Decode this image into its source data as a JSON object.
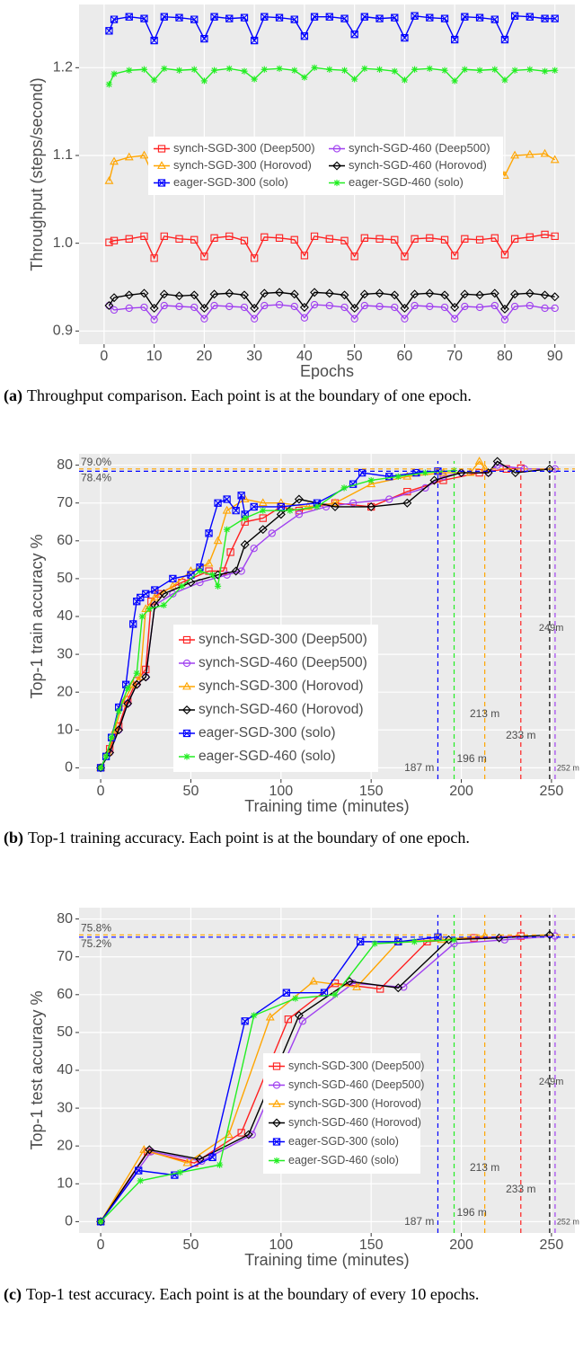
{
  "chart_data": [
    {
      "type": "line",
      "xlabel": "Epochs",
      "ylabel": "Throughput (steps/second)",
      "caption_label": "(a)",
      "caption": "Throughput comparison. Each point is at the boundary of one epoch.",
      "xlim": [
        -5,
        94
      ],
      "ylim": [
        0.885,
        1.272
      ],
      "xticks": [
        0,
        10,
        20,
        30,
        40,
        50,
        60,
        70,
        80,
        90
      ],
      "yticks": [
        0.9,
        {
          "value": 1,
          "label": "1.0"
        },
        1.1,
        1.2
      ],
      "grid": true,
      "legend": "center",
      "legend_columns": 2,
      "x": [
        1,
        2,
        5,
        8,
        10,
        12,
        15,
        18,
        20,
        22,
        25,
        28,
        30,
        32,
        35,
        38,
        40,
        42,
        45,
        48,
        50,
        52,
        55,
        58,
        60,
        62,
        65,
        68,
        70,
        72,
        75,
        78,
        80,
        82,
        85,
        88,
        90
      ],
      "series": [
        {
          "name": "synch-SGD-300 (Deep500)",
          "color": "#ff2020",
          "marker": "square",
          "values": [
            1.001,
            1.003,
            1.005,
            1.008,
            0.983,
            1.008,
            1.005,
            1.004,
            0.985,
            1.006,
            1.008,
            1.003,
            0.983,
            1.007,
            1.006,
            1.004,
            0.986,
            1.008,
            1.005,
            1.003,
            0.985,
            1.006,
            1.005,
            1.004,
            0.985,
            1.005,
            1.006,
            1.004,
            0.986,
            1.005,
            1.004,
            1.006,
            0.987,
            1.005,
            1.007,
            1.01,
            1.008
          ]
        },
        {
          "name": "synch-SGD-460 (Deep500)",
          "color": "#a040f0",
          "marker": "circle",
          "values": [
            0.929,
            0.924,
            0.926,
            0.927,
            0.913,
            0.929,
            0.928,
            0.927,
            0.914,
            0.929,
            0.928,
            0.927,
            0.914,
            0.929,
            0.93,
            0.928,
            0.915,
            0.93,
            0.929,
            0.927,
            0.914,
            0.929,
            0.928,
            0.927,
            0.914,
            0.929,
            0.928,
            0.927,
            0.914,
            0.928,
            0.927,
            0.929,
            0.913,
            0.928,
            0.929,
            0.926,
            0.926
          ]
        },
        {
          "name": "synch-SGD-300 (Horovod)",
          "color": "#ffa500",
          "marker": "triangle",
          "values": [
            1.071,
            1.093,
            1.098,
            1.1,
            1.075,
            1.1,
            1.099,
            1.097,
            1.076,
            1.101,
            1.1,
            1.099,
            1.078,
            1.103,
            1.104,
            1.1,
            1.079,
            1.101,
            1.1,
            1.098,
            1.077,
            1.101,
            1.1,
            1.099,
            1.076,
            1.1,
            1.101,
            1.1,
            1.077,
            1.1,
            1.099,
            1.101,
            1.077,
            1.1,
            1.101,
            1.102,
            1.095
          ]
        },
        {
          "name": "synch-SGD-460 (Horovod)",
          "color": "#000000",
          "marker": "diamond",
          "values": [
            0.929,
            0.938,
            0.941,
            0.943,
            0.926,
            0.942,
            0.94,
            0.941,
            0.926,
            0.942,
            0.943,
            0.941,
            0.926,
            0.943,
            0.944,
            0.942,
            0.927,
            0.944,
            0.943,
            0.941,
            0.926,
            0.942,
            0.943,
            0.941,
            0.926,
            0.942,
            0.943,
            0.941,
            0.927,
            0.942,
            0.941,
            0.943,
            0.925,
            0.942,
            0.943,
            0.941,
            0.939
          ]
        },
        {
          "name": "eager-SGD-300 (solo)",
          "color": "#0000ff",
          "marker": "squarex",
          "values": [
            1.242,
            1.255,
            1.258,
            1.256,
            1.231,
            1.258,
            1.257,
            1.255,
            1.233,
            1.258,
            1.256,
            1.257,
            1.231,
            1.258,
            1.257,
            1.255,
            1.236,
            1.258,
            1.258,
            1.256,
            1.238,
            1.258,
            1.256,
            1.257,
            1.234,
            1.259,
            1.257,
            1.256,
            1.232,
            1.258,
            1.257,
            1.255,
            1.232,
            1.259,
            1.258,
            1.256,
            1.256
          ]
        },
        {
          "name": "eager-SGD-460 (solo)",
          "color": "#22ee22",
          "marker": "star",
          "values": [
            1.181,
            1.193,
            1.197,
            1.198,
            1.186,
            1.199,
            1.197,
            1.198,
            1.185,
            1.197,
            1.199,
            1.196,
            1.187,
            1.198,
            1.199,
            1.197,
            1.189,
            1.2,
            1.198,
            1.197,
            1.187,
            1.199,
            1.198,
            1.196,
            1.186,
            1.198,
            1.199,
            1.197,
            1.185,
            1.198,
            1.197,
            1.198,
            1.186,
            1.197,
            1.198,
            1.196,
            1.197
          ]
        }
      ]
    },
    {
      "type": "line",
      "xlabel": "Training time (minutes)",
      "ylabel": "Top-1 train accuracy %",
      "caption_label": "(b)",
      "caption": "Top-1 training accuracy. Each point is at the boundary of one epoch.",
      "xlim": [
        -12,
        263
      ],
      "ylim": [
        -3,
        83
      ],
      "xticks": [
        0,
        50,
        100,
        150,
        200,
        250
      ],
      "yticks": [
        0,
        10,
        20,
        30,
        40,
        50,
        60,
        70,
        80
      ],
      "grid": true,
      "legend": "center",
      "legend_columns": 1,
      "series": [
        {
          "name": "synch-SGD-300 (Deep500)",
          "color": "#ff2020",
          "marker": "square",
          "x": [
            0,
            5,
            10,
            15,
            20,
            25,
            28,
            32,
            45,
            60,
            68,
            72,
            80,
            90,
            100,
            110,
            130,
            150,
            170,
            190,
            210,
            225,
            233
          ],
          "values": [
            0,
            5,
            11,
            18,
            23,
            26,
            44,
            46,
            49,
            52,
            52,
            57,
            65,
            66,
            69,
            68,
            70,
            69,
            73,
            76,
            78,
            79,
            79.2
          ]
        },
        {
          "name": "synch-SGD-460 (Deep500)",
          "color": "#a040f0",
          "marker": "circle",
          "x": [
            0,
            5,
            10,
            15,
            20,
            25,
            30,
            40,
            55,
            70,
            78,
            85,
            95,
            110,
            125,
            140,
            160,
            180,
            190,
            200,
            215,
            220,
            235,
            252
          ],
          "values": [
            0,
            4,
            10,
            17,
            22,
            24,
            43,
            46,
            49,
            51,
            52,
            58,
            62,
            67,
            69,
            70,
            71,
            74,
            77,
            78,
            78,
            80,
            79,
            79
          ]
        },
        {
          "name": "synch-SGD-300 (Horovod)",
          "color": "#ffa500",
          "marker": "triangle",
          "x": [
            0,
            4,
            8,
            12,
            18,
            22,
            25,
            30,
            40,
            50,
            60,
            65,
            70,
            80,
            90,
            100,
            115,
            130,
            150,
            170,
            190,
            205,
            210,
            213
          ],
          "values": [
            0,
            4,
            10,
            17,
            22,
            24,
            42,
            45,
            48,
            52,
            54,
            60,
            68,
            71,
            70,
            70,
            69,
            70,
            75,
            77,
            78,
            78,
            81,
            79.2
          ]
        },
        {
          "name": "synch-SGD-460 (Horovod)",
          "color": "#000000",
          "marker": "diamond",
          "x": [
            0,
            5,
            10,
            15,
            20,
            25,
            30,
            35,
            50,
            65,
            75,
            80,
            90,
            100,
            110,
            130,
            150,
            170,
            185,
            200,
            215,
            220,
            230,
            249
          ],
          "values": [
            0,
            4,
            10,
            17,
            22,
            24,
            43,
            46,
            49,
            51,
            52,
            59,
            63,
            67,
            71,
            69,
            69,
            70,
            76,
            78,
            78,
            81,
            78,
            79
          ]
        },
        {
          "name": "eager-SGD-300 (solo)",
          "color": "#0000ff",
          "marker": "squarex",
          "x": [
            0,
            3,
            6,
            10,
            14,
            18,
            20,
            22,
            25,
            30,
            40,
            50,
            55,
            60,
            65,
            70,
            75,
            78,
            80,
            85,
            100,
            120,
            140,
            145,
            160,
            175,
            187
          ],
          "values": [
            0,
            3,
            8,
            16,
            22,
            38,
            44,
            45,
            46,
            47,
            50,
            51,
            53,
            62,
            70,
            71,
            68,
            72,
            67,
            69,
            69,
            70,
            75,
            78,
            77,
            78,
            78.4
          ]
        },
        {
          "name": "eager-SGD-460 (solo)",
          "color": "#22ee22",
          "marker": "star",
          "x": [
            0,
            3,
            6,
            10,
            15,
            20,
            23,
            27,
            35,
            45,
            55,
            62,
            65,
            70,
            80,
            90,
            105,
            120,
            135,
            150,
            165,
            180,
            196
          ],
          "values": [
            0,
            3,
            8,
            15,
            21,
            25,
            40,
            42,
            43,
            48,
            52,
            51,
            48,
            63,
            66,
            68,
            68,
            69,
            74,
            76,
            77,
            78,
            78.6
          ]
        }
      ],
      "hlines": [
        {
          "y": 79.0,
          "label": "79.0%",
          "color": "#ffa500"
        },
        {
          "y": 78.4,
          "label": "78.4%",
          "color": "#0000ff"
        }
      ],
      "vlines": [
        {
          "x": 187,
          "label": "187 m",
          "color": "#0000ff"
        },
        {
          "x": 196,
          "label": "196 m",
          "color": "#22ee22"
        },
        {
          "x": 213,
          "label": "213 m",
          "color": "#ffa500"
        },
        {
          "x": 233,
          "label": "233 m",
          "color": "#ff2020"
        },
        {
          "x": 249,
          "label": "249m",
          "color": "#000000"
        },
        {
          "x": 252,
          "label": "252 m",
          "color": "#a040f0"
        }
      ]
    },
    {
      "type": "line",
      "xlabel": "Training time (minutes)",
      "ylabel": "Top-1 test accuracy %",
      "caption_label": "(c)",
      "caption": "Top-1 test accuracy. Each point is at the boundary of every 10 epochs.",
      "xlim": [
        -12,
        263
      ],
      "ylim": [
        -3,
        83
      ],
      "xticks": [
        0,
        50,
        100,
        150,
        200,
        250
      ],
      "yticks": [
        0,
        10,
        20,
        30,
        40,
        50,
        60,
        70,
        80
      ],
      "grid": true,
      "legend": "center",
      "legend_columns": 1,
      "series": [
        {
          "name": "synch-SGD-300 (Deep500)",
          "color": "#ff2020",
          "marker": "square",
          "x": [
            0,
            26,
            52,
            78,
            104,
            130,
            155,
            181,
            207,
            233
          ],
          "values": [
            0,
            18.5,
            15.5,
            23.5,
            53.5,
            63,
            61.5,
            74,
            75,
            75.5
          ]
        },
        {
          "name": "synch-SGD-460 (Deep500)",
          "color": "#a040f0",
          "marker": "circle",
          "x": [
            0,
            28,
            56,
            84,
            112,
            140,
            168,
            196,
            224,
            252
          ],
          "values": [
            0,
            18.5,
            16,
            23,
            53,
            63,
            62,
            73.5,
            74.5,
            75.5
          ]
        },
        {
          "name": "synch-SGD-300 (Horovod)",
          "color": "#ffa500",
          "marker": "triangle",
          "x": [
            0,
            24,
            48,
            71,
            94,
            118,
            142,
            165,
            189,
            213
          ],
          "values": [
            0,
            19,
            15.5,
            23,
            54,
            63.5,
            62,
            74,
            74.5,
            75.5
          ]
        },
        {
          "name": "synch-SGD-460 (Horovod)",
          "color": "#000000",
          "marker": "diamond",
          "x": [
            0,
            27,
            55,
            82,
            110,
            138,
            165,
            193,
            221,
            249
          ],
          "values": [
            0,
            19,
            16.5,
            23,
            54.5,
            63.5,
            61.8,
            74.5,
            75,
            75.8
          ]
        },
        {
          "name": "eager-SGD-300 (solo)",
          "color": "#0000ff",
          "marker": "squarex",
          "x": [
            0,
            21,
            41,
            62,
            80,
            103,
            124,
            144,
            165,
            187
          ],
          "values": [
            0,
            13.5,
            12.3,
            17,
            53,
            60.5,
            60.5,
            74,
            74,
            75.2
          ]
        },
        {
          "name": "eager-SGD-460 (solo)",
          "color": "#22ee22",
          "marker": "star",
          "x": [
            0,
            22,
            44,
            66,
            85,
            108,
            130,
            152,
            174,
            196
          ],
          "values": [
            0,
            10.8,
            13,
            15,
            54.5,
            59,
            60,
            73.5,
            74,
            74.5
          ]
        }
      ],
      "hlines": [
        {
          "y": 75.8,
          "label": "75.8%",
          "color": "#ffa500"
        },
        {
          "y": 75.2,
          "label": "75.2%",
          "color": "#0000ff"
        }
      ],
      "vlines": [
        {
          "x": 187,
          "label": "187 m",
          "color": "#0000ff"
        },
        {
          "x": 196,
          "label": "196 m",
          "color": "#22ee22"
        },
        {
          "x": 213,
          "label": "213 m",
          "color": "#ffa500"
        },
        {
          "x": 233,
          "label": "233 m",
          "color": "#ff2020"
        },
        {
          "x": 249,
          "label": "249m",
          "color": "#000000"
        },
        {
          "x": 252,
          "label": "252 m",
          "color": "#a040f0"
        }
      ]
    }
  ]
}
